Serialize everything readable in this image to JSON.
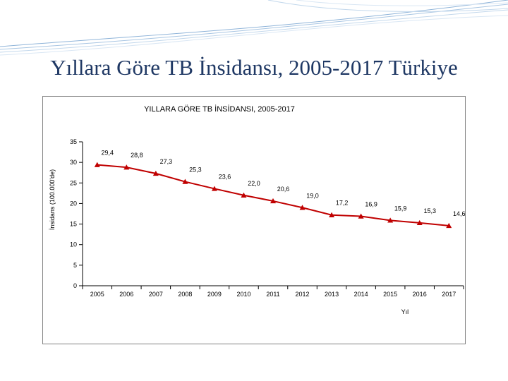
{
  "slide": {
    "title": "Yıllara Göre TB İnsidansı, 2005-2017 Türkiye"
  },
  "colors": {
    "title": "#1f3864",
    "line": "#c00000",
    "marker": "#c00000",
    "axis": "#000000",
    "decoration": "#8fb4d9"
  },
  "chart_data": {
    "type": "line",
    "title": "YILLARA GÖRE TB İNSİDANSI, 2005-2017",
    "xlabel": "Yıl",
    "ylabel": "İnsidans (100.000'de)",
    "categories": [
      "2005",
      "2006",
      "2007",
      "2008",
      "2009",
      "2010",
      "2011",
      "2012",
      "2013",
      "2014",
      "2015",
      "2016",
      "2017"
    ],
    "series": [
      {
        "values": [
          29.4,
          28.8,
          27.3,
          25.3,
          23.6,
          22.0,
          20.6,
          19.0,
          17.2,
          16.9,
          15.9,
          15.3,
          14.6
        ],
        "labels": [
          "29,4",
          "28,8",
          "27,3",
          "25,3",
          "23,6",
          "22,0",
          "20,6",
          "19,0",
          "17,2",
          "16,9",
          "15,9",
          "15,3",
          "14,6"
        ]
      }
    ],
    "ylim": [
      0,
      35
    ],
    "yticks": [
      "0",
      "5",
      "10",
      "15",
      "20",
      "25",
      "30",
      "35"
    ],
    "marker": "triangle",
    "grid": false,
    "legend": "none"
  }
}
